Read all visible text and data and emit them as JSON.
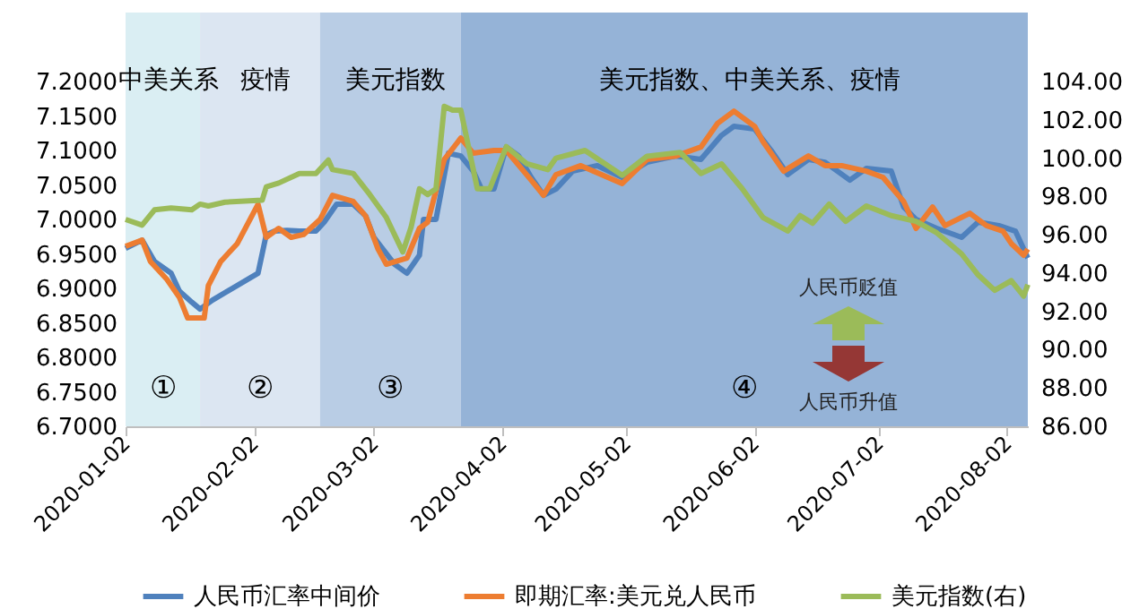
{
  "chart_data": {
    "type": "line",
    "xlim": [
      "2020-01-02",
      "2020-08-07"
    ],
    "xticks": [
      "2020-01-02",
      "2020-02-02",
      "2020-03-02",
      "2020-04-02",
      "2020-05-02",
      "2020-06-02",
      "2020-07-02",
      "2020-08-02"
    ],
    "ylim": [
      6.7,
      7.3
    ],
    "yticks": [
      {
        "value": 6.7,
        "label": "6.7000"
      },
      {
        "value": 6.75,
        "label": "6.7500"
      },
      {
        "value": 6.8,
        "label": "6.8000"
      },
      {
        "value": 6.85,
        "label": "6.8500"
      },
      {
        "value": 6.9,
        "label": "6.9000"
      },
      {
        "value": 6.95,
        "label": "6.9500"
      },
      {
        "value": 7,
        "label": "7.0000"
      },
      {
        "value": 7.05,
        "label": "7.0500"
      },
      {
        "value": 7.1,
        "label": "7.1000"
      },
      {
        "value": 7.15,
        "label": "7.1500"
      },
      {
        "value": 7.2,
        "label": "7.2000"
      }
    ],
    "y2lim": [
      86,
      107.6
    ],
    "y2ticks": [
      {
        "value": 86,
        "label": "86.00"
      },
      {
        "value": 88,
        "label": "88.00"
      },
      {
        "value": 90,
        "label": "90.00"
      },
      {
        "value": 92,
        "label": "92.00"
      },
      {
        "value": 94,
        "label": "94.00"
      },
      {
        "value": 96,
        "label": "96.00"
      },
      {
        "value": 98,
        "label": "98.00"
      },
      {
        "value": 100,
        "label": "100.00"
      },
      {
        "value": 102,
        "label": "102.00"
      },
      {
        "value": 104,
        "label": "104.00"
      }
    ],
    "bands": [
      {
        "axis": "x",
        "from": "2020-01-02",
        "to": "2020-01-20",
        "label": "中美关系",
        "color": "#daeef3"
      },
      {
        "axis": "x",
        "from": "2020-01-20",
        "to": "2020-02-18",
        "label": "疫情",
        "color": "#dce6f2"
      },
      {
        "axis": "x",
        "from": "2020-02-18",
        "to": "2020-03-23",
        "label": "美元指数",
        "color": "#b9cde5"
      },
      {
        "axis": "x",
        "from": "2020-03-23",
        "to": "2020-08-07",
        "label": "美元指数、中美关系、疫情",
        "color": "#95b3d7"
      }
    ],
    "annotations": [
      "①",
      "②",
      "③",
      "④",
      "人民币贬值",
      "人民币升值"
    ],
    "legend": "bottom",
    "series": [
      {
        "name": "人民币汇率中间价",
        "color": "#4f81bd",
        "x": [
          "2020-01-02",
          "2020-01-06",
          "2020-01-09",
          "2020-01-13",
          "2020-01-15",
          "2020-01-18",
          "2020-01-20",
          "2020-01-23",
          "2020-02-03",
          "2020-02-05",
          "2020-02-07",
          "2020-02-10",
          "2020-02-13",
          "2020-02-17",
          "2020-02-19",
          "2020-02-22",
          "2020-02-26",
          "2020-02-29",
          "2020-03-02",
          "2020-03-07",
          "2020-03-10",
          "2020-03-13",
          "2020-03-14",
          "2020-03-17",
          "2020-03-20",
          "2020-03-23",
          "2020-03-26",
          "2020-03-28",
          "2020-03-31",
          "2020-04-03",
          "2020-04-06",
          "2020-04-09",
          "2020-04-12",
          "2020-04-15",
          "2020-04-19",
          "2020-04-25",
          "2020-05-01",
          "2020-05-07",
          "2020-05-14",
          "2020-05-20",
          "2020-05-25",
          "2020-05-28",
          "2020-06-02",
          "2020-06-06",
          "2020-06-10",
          "2020-06-15",
          "2020-06-19",
          "2020-06-25",
          "2020-06-29",
          "2020-07-05",
          "2020-07-08",
          "2020-07-11",
          "2020-07-16",
          "2020-07-22",
          "2020-07-26",
          "2020-07-31",
          "2020-08-04",
          "2020-08-07"
        ],
        "values": [
          6.958,
          6.97,
          6.939,
          6.922,
          6.896,
          6.88,
          6.87,
          6.883,
          6.922,
          6.978,
          6.983,
          6.984,
          6.983,
          6.983,
          6.996,
          7.022,
          7.022,
          7.005,
          6.974,
          6.935,
          6.922,
          6.948,
          7.0,
          7.0,
          7.096,
          7.092,
          7.07,
          7.044,
          7.044,
          7.105,
          7.092,
          7.061,
          7.035,
          7.044,
          7.07,
          7.078,
          7.061,
          7.083,
          7.092,
          7.087,
          7.122,
          7.135,
          7.131,
          7.1,
          7.065,
          7.087,
          7.083,
          7.057,
          7.074,
          7.07,
          7.018,
          7.0,
          6.987,
          6.974,
          6.996,
          6.991,
          6.983,
          6.944
        ]
      },
      {
        "name": "即期汇率:美元兑人民币",
        "color": "#ed7d31",
        "x": [
          "2020-01-02",
          "2020-01-06",
          "2020-01-08",
          "2020-01-12",
          "2020-01-15",
          "2020-01-17",
          "2020-01-21",
          "2020-01-22",
          "2020-01-25",
          "2020-01-29",
          "2020-02-03",
          "2020-02-05",
          "2020-02-08",
          "2020-02-11",
          "2020-02-14",
          "2020-02-18",
          "2020-02-21",
          "2020-02-26",
          "2020-02-29",
          "2020-03-03",
          "2020-03-05",
          "2020-03-10",
          "2020-03-13",
          "2020-03-15",
          "2020-03-19",
          "2020-03-23",
          "2020-03-26",
          "2020-03-31",
          "2020-04-03",
          "2020-04-09",
          "2020-04-12",
          "2020-04-15",
          "2020-04-21",
          "2020-05-01",
          "2020-05-07",
          "2020-05-14",
          "2020-05-20",
          "2020-05-24",
          "2020-05-28",
          "2020-06-02",
          "2020-06-04",
          "2020-06-09",
          "2020-06-15",
          "2020-06-19",
          "2020-06-23",
          "2020-06-29",
          "2020-07-03",
          "2020-07-08",
          "2020-07-11",
          "2020-07-15",
          "2020-07-18",
          "2020-07-24",
          "2020-07-28",
          "2020-08-01",
          "2020-08-03",
          "2020-08-06",
          "2020-08-07"
        ],
        "values": [
          6.961,
          6.97,
          6.939,
          6.913,
          6.887,
          6.857,
          6.857,
          6.904,
          6.939,
          6.965,
          7.022,
          6.974,
          6.987,
          6.974,
          6.978,
          7.0,
          7.035,
          7.026,
          7.005,
          6.957,
          6.935,
          6.944,
          6.987,
          6.996,
          7.087,
          7.118,
          7.096,
          7.1,
          7.1,
          7.057,
          7.035,
          7.065,
          7.078,
          7.052,
          7.087,
          7.092,
          7.105,
          7.139,
          7.157,
          7.135,
          7.113,
          7.07,
          7.092,
          7.078,
          7.078,
          7.07,
          7.061,
          7.026,
          6.987,
          7.018,
          6.991,
          7.009,
          6.991,
          6.983,
          6.965,
          6.948,
          6.957
        ]
      },
      {
        "name": "美元指数(右)",
        "color": "#9bbb59",
        "axis": "y2",
        "x": [
          "2020-01-02",
          "2020-01-06",
          "2020-01-09",
          "2020-01-13",
          "2020-01-18",
          "2020-01-20",
          "2020-01-22",
          "2020-01-26",
          "2020-02-04",
          "2020-02-05",
          "2020-02-08",
          "2020-02-13",
          "2020-02-17",
          "2020-02-20",
          "2020-02-21",
          "2020-02-26",
          "2020-03-01",
          "2020-03-05",
          "2020-03-09",
          "2020-03-11",
          "2020-03-13",
          "2020-03-15",
          "2020-03-17",
          "2020-03-19",
          "2020-03-21",
          "2020-03-23",
          "2020-03-27",
          "2020-03-30",
          "2020-04-03",
          "2020-04-08",
          "2020-04-13",
          "2020-04-15",
          "2020-04-22",
          "2020-05-01",
          "2020-05-07",
          "2020-05-15",
          "2020-05-20",
          "2020-05-25",
          "2020-05-30",
          "2020-06-04",
          "2020-06-10",
          "2020-06-13",
          "2020-06-16",
          "2020-06-20",
          "2020-06-24",
          "2020-06-29",
          "2020-07-05",
          "2020-07-11",
          "2020-07-16",
          "2020-07-22",
          "2020-07-26",
          "2020-07-30",
          "2020-08-03",
          "2020-08-06",
          "2020-08-07"
        ],
        "values": [
          96.8,
          96.5,
          97.3,
          97.4,
          97.3,
          97.6,
          97.5,
          97.7,
          97.8,
          98.5,
          98.7,
          99.2,
          99.2,
          99.9,
          99.4,
          99.2,
          98.1,
          96.9,
          95.1,
          96.4,
          98.4,
          98.1,
          98.4,
          102.7,
          102.5,
          102.5,
          98.4,
          98.4,
          100.6,
          99.7,
          99.4,
          100.0,
          100.4,
          99.1,
          100.1,
          100.3,
          99.2,
          99.7,
          98.4,
          96.9,
          96.2,
          97.0,
          96.6,
          97.6,
          96.7,
          97.5,
          97.0,
          96.7,
          96.1,
          95.0,
          93.9,
          93.1,
          93.6,
          92.8,
          93.4
        ]
      }
    ]
  }
}
